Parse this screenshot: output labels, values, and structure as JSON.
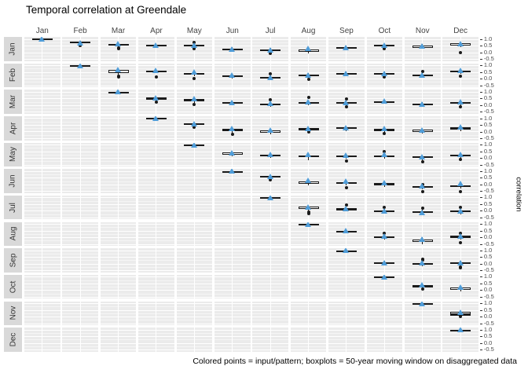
{
  "title": "Temporal correlation at Greendale",
  "caption": "Colored points = input/pattern; boxplots = 50-year moving window on disaggregated data",
  "y_axis_title": "correlation",
  "colors": {
    "panel_bg": "#ebebeb",
    "grid_major": "#ffffff",
    "grid_minor": "#f5f5f5",
    "strip_bg": "#d9d9d9",
    "box_stroke": "#1a1a1a",
    "pattern_point": "#4f9dd9",
    "axis_text": "#4d4d4d"
  },
  "chart_data": {
    "type": "boxplot-matrix",
    "title": "Temporal correlation at Greendale",
    "facet_rows": [
      "Jan",
      "Feb",
      "Mar",
      "Apr",
      "May",
      "Jun",
      "Jul",
      "Aug",
      "Sep",
      "Oct",
      "Nov",
      "Dec"
    ],
    "facet_cols": [
      "Jan",
      "Feb",
      "Mar",
      "Apr",
      "May",
      "Jun",
      "Jul",
      "Aug",
      "Sep",
      "Oct",
      "Nov",
      "Dec"
    ],
    "y_tick_labels": [
      "1.0",
      "0.5",
      "0.0",
      "-0.5"
    ],
    "y_tick_values": [
      1.0,
      0.5,
      0.0,
      -0.5
    ],
    "ylim": [
      -0.65,
      1.15
    ],
    "grid": true,
    "legend_position": "none",
    "cell_fields": [
      "row",
      "col",
      "whisker_lo",
      "q1",
      "median",
      "q3",
      "whisker_hi",
      "pattern_point",
      "box_fill",
      "outliers"
    ],
    "cells": [
      [
        1,
        1,
        1,
        0.99,
        1,
        1.01,
        1,
        1,
        "black",
        []
      ],
      [
        1,
        2,
        0.6,
        0.68,
        0.73,
        0.78,
        0.85,
        0.72,
        "black",
        [
          0.5
        ]
      ],
      [
        1,
        3,
        0.45,
        0.55,
        0.6,
        0.65,
        0.7,
        0.63,
        "black",
        [
          0.3,
          0.25
        ]
      ],
      [
        1,
        4,
        0.42,
        0.5,
        0.54,
        0.58,
        0.65,
        0.56,
        "black",
        []
      ],
      [
        1,
        5,
        0.4,
        0.48,
        0.52,
        0.56,
        0.62,
        0.55,
        "black",
        [
          0.75,
          0.25
        ]
      ],
      [
        1,
        6,
        0.02,
        0.14,
        0.2,
        0.26,
        0.38,
        0.25,
        "white",
        []
      ],
      [
        1,
        7,
        0,
        0.12,
        0.17,
        0.22,
        0.3,
        0.2,
        "black",
        [
          -0.07
        ]
      ],
      [
        1,
        8,
        -0.1,
        0.05,
        0.12,
        0.2,
        0.3,
        0.3,
        "white",
        []
      ],
      [
        1,
        9,
        0.12,
        0.25,
        0.32,
        0.38,
        0.48,
        0.35,
        "white",
        []
      ],
      [
        1,
        10,
        0.35,
        0.45,
        0.5,
        0.55,
        0.62,
        0.55,
        "black",
        [
          0.28
        ]
      ],
      [
        1,
        11,
        0.25,
        0.35,
        0.44,
        0.52,
        0.6,
        0.5,
        "white",
        []
      ],
      [
        1,
        12,
        0.4,
        0.5,
        0.6,
        0.68,
        0.75,
        0.65,
        "white",
        [
          0
        ]
      ],
      [
        2,
        2,
        1,
        0.99,
        1,
        1.01,
        1,
        1,
        "black",
        []
      ],
      [
        2,
        3,
        0.3,
        0.45,
        0.55,
        0.65,
        0.72,
        0.67,
        "white",
        [
          0.2,
          0.12
        ]
      ],
      [
        2,
        4,
        0.4,
        0.5,
        0.56,
        0.62,
        0.7,
        0.62,
        "black",
        [
          0.1
        ]
      ],
      [
        2,
        5,
        0.18,
        0.3,
        0.38,
        0.45,
        0.55,
        0.5,
        "white",
        [
          0
        ]
      ],
      [
        2,
        6,
        0,
        0.1,
        0.18,
        0.25,
        0.35,
        0.28,
        "white",
        []
      ],
      [
        2,
        7,
        -0.05,
        0.05,
        0.1,
        0.15,
        0.25,
        0.12,
        "black",
        [
          0.35
        ]
      ],
      [
        2,
        8,
        0.08,
        0.2,
        0.25,
        0.3,
        0.4,
        0.3,
        "black",
        [
          -0.05
        ]
      ],
      [
        2,
        9,
        0.2,
        0.3,
        0.36,
        0.42,
        0.52,
        0.42,
        "white",
        []
      ],
      [
        2,
        10,
        0.25,
        0.35,
        0.4,
        0.45,
        0.52,
        0.4,
        "black",
        [
          0.15
        ]
      ],
      [
        2,
        11,
        0.1,
        0.2,
        0.25,
        0.3,
        0.4,
        0.25,
        "black",
        [
          0.55
        ]
      ],
      [
        2,
        12,
        0.38,
        0.5,
        0.55,
        0.6,
        0.68,
        0.6,
        "black",
        [
          0.2
        ]
      ],
      [
        3,
        3,
        1,
        0.99,
        1,
        1.01,
        1,
        1,
        "black",
        []
      ],
      [
        3,
        4,
        0.3,
        0.42,
        0.48,
        0.55,
        0.65,
        0.55,
        "black",
        [
          0.2
        ]
      ],
      [
        3,
        5,
        0.18,
        0.3,
        0.38,
        0.45,
        0.55,
        0.48,
        "black",
        [
          0.05
        ]
      ],
      [
        3,
        6,
        0,
        0.1,
        0.16,
        0.22,
        0.32,
        0.2,
        "black",
        []
      ],
      [
        3,
        7,
        -0.1,
        0,
        0.06,
        0.12,
        0.22,
        0.15,
        "black",
        [
          0.4
        ]
      ],
      [
        3,
        8,
        0,
        0.1,
        0.16,
        0.22,
        0.3,
        0.25,
        "black",
        [
          0.55
        ]
      ],
      [
        3,
        9,
        -0.02,
        0.1,
        0.18,
        0.25,
        0.35,
        0.22,
        "white",
        [
          0.45,
          -0.15
        ]
      ],
      [
        3,
        10,
        0.08,
        0.18,
        0.24,
        0.3,
        0.4,
        0.3,
        "black",
        []
      ],
      [
        3,
        11,
        -0.12,
        0,
        0.06,
        0.12,
        0.22,
        0.1,
        "white",
        []
      ],
      [
        3,
        12,
        0,
        0.1,
        0.17,
        0.25,
        0.35,
        0.28,
        "black",
        [
          -0.1
        ]
      ],
      [
        4,
        4,
        1,
        0.99,
        1,
        1.01,
        1,
        1,
        "black",
        []
      ],
      [
        4,
        5,
        0.35,
        0.47,
        0.53,
        0.6,
        0.68,
        0.6,
        "black",
        [
          0.3
        ]
      ],
      [
        4,
        6,
        -0.1,
        0.03,
        0.12,
        0.2,
        0.3,
        0.22,
        "black",
        [
          -0.2
        ]
      ],
      [
        4,
        7,
        -0.22,
        -0.1,
        -0.02,
        0.07,
        0.15,
        0.13,
        "white",
        []
      ],
      [
        4,
        8,
        0,
        0.1,
        0.17,
        0.25,
        0.35,
        0.25,
        "black",
        [
          -0.02
        ]
      ],
      [
        4,
        9,
        0.05,
        0.18,
        0.24,
        0.3,
        0.4,
        0.28,
        "white",
        []
      ],
      [
        4,
        10,
        -0.08,
        0.05,
        0.12,
        0.2,
        0.3,
        0.22,
        "black",
        [
          -0.17
        ]
      ],
      [
        4,
        11,
        -0.15,
        -0.03,
        0.05,
        0.12,
        0.22,
        0.12,
        "white",
        []
      ],
      [
        4,
        12,
        0.05,
        0.15,
        0.22,
        0.3,
        0.4,
        0.35,
        "black",
        []
      ],
      [
        5,
        5,
        1,
        0.99,
        1,
        1.01,
        1,
        1,
        "black",
        []
      ],
      [
        5,
        6,
        0.12,
        0.25,
        0.33,
        0.4,
        0.5,
        0.42,
        "white",
        []
      ],
      [
        5,
        7,
        0,
        0.13,
        0.19,
        0.25,
        0.35,
        0.28,
        "black",
        []
      ],
      [
        5,
        8,
        -0.15,
        0.05,
        0.11,
        0.18,
        0.28,
        0.3,
        "white",
        []
      ],
      [
        5,
        9,
        -0.08,
        0.05,
        0.11,
        0.18,
        0.28,
        0.22,
        "white",
        [
          -0.2
        ]
      ],
      [
        5,
        10,
        -0.05,
        0.05,
        0.12,
        0.18,
        0.3,
        0.25,
        "white",
        [
          0.45
        ]
      ],
      [
        5,
        11,
        -0.15,
        -0.02,
        0.04,
        0.1,
        0.2,
        0.12,
        "white",
        [
          -0.27
        ]
      ],
      [
        5,
        12,
        0,
        0.1,
        0.16,
        0.22,
        0.3,
        0.28,
        "black",
        [
          -0.12
        ]
      ],
      [
        6,
        6,
        1,
        0.99,
        1,
        1.01,
        1,
        1,
        "black",
        []
      ],
      [
        6,
        7,
        0.4,
        0.52,
        0.58,
        0.65,
        0.72,
        0.6,
        "black",
        [
          0.33
        ]
      ],
      [
        6,
        8,
        -0.05,
        0.07,
        0.13,
        0.2,
        0.3,
        0.3,
        "white",
        []
      ],
      [
        6,
        9,
        -0.08,
        0.05,
        0.11,
        0.18,
        0.28,
        0.25,
        "black",
        [
          -0.25
        ]
      ],
      [
        6,
        10,
        -0.18,
        -0.05,
        0.01,
        0.08,
        0.18,
        0.12,
        "black",
        []
      ],
      [
        6,
        11,
        -0.38,
        -0.25,
        -0.18,
        -0.12,
        -0.02,
        -0.12,
        "black",
        [
          0,
          -0.55
        ]
      ],
      [
        6,
        12,
        -0.3,
        -0.18,
        -0.11,
        -0.05,
        0.05,
        0.05,
        "black",
        [
          -0.55
        ]
      ],
      [
        7,
        7,
        1,
        0.99,
        1,
        1.01,
        1,
        1,
        "black",
        []
      ],
      [
        7,
        8,
        0,
        0.12,
        0.2,
        0.3,
        0.4,
        0.3,
        "white",
        [
          -0.1,
          -0.18
        ]
      ],
      [
        7,
        9,
        -0.05,
        0.05,
        0.12,
        0.18,
        0.28,
        0.2,
        "black",
        [
          0.45
        ]
      ],
      [
        7,
        10,
        -0.2,
        -0.1,
        -0.04,
        0.02,
        0.12,
        0.02,
        "black",
        [
          0.25
        ]
      ],
      [
        7,
        11,
        -0.28,
        -0.15,
        -0.09,
        -0.03,
        0.08,
        -0.1,
        "black",
        [
          0.2
        ]
      ],
      [
        7,
        12,
        -0.25,
        -0.12,
        -0.06,
        0,
        0.1,
        0,
        "black",
        [
          0.28
        ]
      ],
      [
        8,
        8,
        1,
        0.99,
        1,
        1.01,
        1,
        1,
        "black",
        []
      ],
      [
        8,
        9,
        0.28,
        0.38,
        0.44,
        0.5,
        0.6,
        0.5,
        "black",
        []
      ],
      [
        8,
        10,
        -0.18,
        -0.05,
        0.02,
        0.08,
        0.18,
        0.07,
        "black",
        [
          0.3
        ]
      ],
      [
        8,
        11,
        -0.5,
        -0.32,
        -0.24,
        -0.15,
        0,
        -0.13,
        "white",
        []
      ],
      [
        8,
        12,
        -0.18,
        -0.05,
        0.02,
        0.1,
        0.2,
        0.07,
        "black",
        [
          0.3,
          -0.38
        ]
      ],
      [
        9,
        9,
        1,
        0.99,
        1,
        1.01,
        1,
        1,
        "black",
        []
      ],
      [
        9,
        10,
        -0.15,
        -0.02,
        0.05,
        0.12,
        0.22,
        0.1,
        "white",
        []
      ],
      [
        9,
        11,
        -0.22,
        -0.1,
        -0.02,
        0.05,
        0.15,
        0.08,
        "white",
        [
          0.35,
          0.3
        ]
      ],
      [
        9,
        12,
        -0.12,
        0,
        0.05,
        0.1,
        0.2,
        0.1,
        "black",
        [
          -0.25,
          -0.32
        ]
      ],
      [
        10,
        10,
        1,
        0.99,
        1,
        1.01,
        1,
        1,
        "black",
        []
      ],
      [
        10,
        11,
        0.1,
        0.22,
        0.28,
        0.35,
        0.45,
        0.38,
        "black",
        [
          0.07
        ]
      ],
      [
        10,
        12,
        -0.08,
        0.03,
        0.1,
        0.18,
        0.28,
        0.2,
        "white",
        []
      ],
      [
        11,
        11,
        1,
        0.99,
        1,
        1.01,
        1,
        1,
        "black",
        []
      ],
      [
        11,
        12,
        -0.02,
        0.08,
        0.2,
        0.33,
        0.42,
        0.35,
        "white",
        [
          -0.02
        ]
      ],
      [
        12,
        12,
        1,
        0.99,
        1,
        1.01,
        1,
        1,
        "black",
        []
      ]
    ]
  }
}
